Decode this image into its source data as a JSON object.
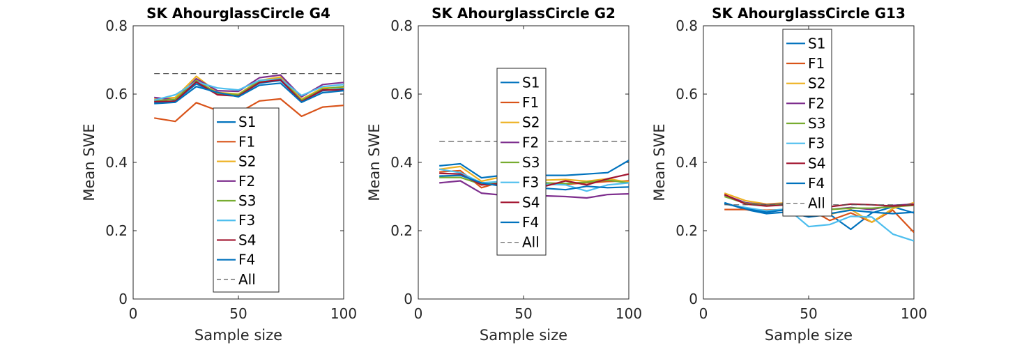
{
  "chart_data": [
    {
      "type": "line",
      "title": "SK AhourglassCircle G4",
      "xlabel": "Sample size",
      "ylabel": "Mean SWE",
      "xlim": [
        0,
        100
      ],
      "ylim": [
        0,
        0.8
      ],
      "xticks": [
        "0",
        "50",
        "100"
      ],
      "yticks": [
        "0",
        "0.2",
        "0.4",
        "0.6",
        "0.8"
      ],
      "x": [
        10,
        20,
        30,
        40,
        50,
        60,
        70,
        80,
        90,
        100
      ],
      "legend_position": "lower-center",
      "series": [
        {
          "name": "S1",
          "color": "#0072BD",
          "values": [
            0.575,
            0.58,
            0.63,
            0.6,
            0.596,
            0.632,
            0.64,
            0.58,
            0.61,
            0.616
          ]
        },
        {
          "name": "F1",
          "color": "#D95319",
          "values": [
            0.53,
            0.52,
            0.575,
            0.552,
            0.545,
            0.58,
            0.586,
            0.535,
            0.562,
            0.567
          ]
        },
        {
          "name": "S2",
          "color": "#EDB120",
          "values": [
            0.585,
            0.59,
            0.652,
            0.605,
            0.6,
            0.64,
            0.65,
            0.585,
            0.618,
            0.62
          ]
        },
        {
          "name": "F2",
          "color": "#7E2F8E",
          "values": [
            0.59,
            0.583,
            0.645,
            0.61,
            0.608,
            0.648,
            0.656,
            0.592,
            0.628,
            0.634
          ]
        },
        {
          "name": "S3",
          "color": "#77AC30",
          "values": [
            0.58,
            0.585,
            0.64,
            0.602,
            0.598,
            0.638,
            0.645,
            0.582,
            0.615,
            0.622
          ]
        },
        {
          "name": "F3",
          "color": "#4DBEEE",
          "values": [
            0.582,
            0.598,
            0.636,
            0.618,
            0.612,
            0.64,
            0.644,
            0.596,
            0.622,
            0.628
          ]
        },
        {
          "name": "S4",
          "color": "#A2142F",
          "values": [
            0.578,
            0.579,
            0.636,
            0.598,
            0.594,
            0.634,
            0.642,
            0.578,
            0.612,
            0.612
          ]
        },
        {
          "name": "F4",
          "color": "#0072BD",
          "values": [
            0.572,
            0.576,
            0.622,
            0.605,
            0.592,
            0.626,
            0.632,
            0.576,
            0.604,
            0.61
          ]
        },
        {
          "name": "All",
          "color": "#000000",
          "dashed": true,
          "values": [
            0.66,
            0.66,
            0.66,
            0.66,
            0.66,
            0.66,
            0.66,
            0.66,
            0.66,
            0.66
          ]
        }
      ]
    },
    {
      "type": "line",
      "title": "SK AhourglassCircle G2",
      "xlabel": "Sample size",
      "ylabel": "Mean SWE",
      "xlim": [
        0,
        100
      ],
      "ylim": [
        0,
        0.8
      ],
      "xticks": [
        "0",
        "50",
        "100"
      ],
      "yticks": [
        "0",
        "0.2",
        "0.4",
        "0.6",
        "0.8"
      ],
      "x": [
        10,
        20,
        30,
        40,
        50,
        60,
        70,
        80,
        90,
        100
      ],
      "legend_position": "center",
      "series": [
        {
          "name": "S1",
          "color": "#0072BD",
          "values": [
            0.39,
            0.396,
            0.355,
            0.362,
            0.36,
            0.362,
            0.362,
            0.366,
            0.37,
            0.406
          ]
        },
        {
          "name": "F1",
          "color": "#D95319",
          "values": [
            0.372,
            0.376,
            0.326,
            0.344,
            0.336,
            0.336,
            0.336,
            0.34,
            0.344,
            0.346
          ]
        },
        {
          "name": "S2",
          "color": "#EDB120",
          "values": [
            0.38,
            0.388,
            0.345,
            0.358,
            0.352,
            0.348,
            0.35,
            0.345,
            0.352,
            0.342
          ]
        },
        {
          "name": "F2",
          "color": "#7E2F8E",
          "values": [
            0.34,
            0.346,
            0.31,
            0.304,
            0.302,
            0.302,
            0.3,
            0.296,
            0.306,
            0.308
          ]
        },
        {
          "name": "S3",
          "color": "#77AC30",
          "values": [
            0.356,
            0.356,
            0.336,
            0.34,
            0.338,
            0.34,
            0.338,
            0.342,
            0.348,
            0.34
          ]
        },
        {
          "name": "F3",
          "color": "#4DBEEE",
          "values": [
            0.38,
            0.37,
            0.34,
            0.344,
            0.34,
            0.336,
            0.334,
            0.316,
            0.334,
            0.34
          ]
        },
        {
          "name": "S4",
          "color": "#A2142F",
          "values": [
            0.368,
            0.366,
            0.334,
            0.338,
            0.334,
            0.33,
            0.346,
            0.334,
            0.352,
            0.366
          ]
        },
        {
          "name": "F4",
          "color": "#0072BD",
          "values": [
            0.36,
            0.362,
            0.34,
            0.33,
            0.33,
            0.324,
            0.32,
            0.33,
            0.326,
            0.328
          ]
        },
        {
          "name": "All",
          "color": "#000000",
          "dashed": true,
          "values": [
            0.462,
            0.462,
            0.462,
            0.462,
            0.462,
            0.462,
            0.462,
            0.462,
            0.462,
            0.462
          ]
        }
      ]
    },
    {
      "type": "line",
      "title": "SK AhourglassCircle G13",
      "xlabel": "Sample size",
      "ylabel": "Mean SWE",
      "xlim": [
        0,
        100
      ],
      "ylim": [
        0,
        0.8
      ],
      "xticks": [
        "0",
        "50",
        "100"
      ],
      "yticks": [
        "0",
        "0.2",
        "0.4",
        "0.6",
        "0.8"
      ],
      "x": [
        10,
        20,
        30,
        40,
        50,
        60,
        70,
        80,
        90,
        100
      ],
      "legend_position": "upper-center",
      "series": [
        {
          "name": "S1",
          "color": "#0072BD",
          "values": [
            0.282,
            0.262,
            0.25,
            0.255,
            0.24,
            0.248,
            0.204,
            0.252,
            0.27,
            0.252
          ]
        },
        {
          "name": "F1",
          "color": "#D95319",
          "values": [
            0.262,
            0.262,
            0.26,
            0.262,
            0.265,
            0.23,
            0.252,
            0.225,
            0.26,
            0.195
          ]
        },
        {
          "name": "S2",
          "color": "#EDB120",
          "values": [
            0.31,
            0.288,
            0.278,
            0.282,
            0.275,
            0.248,
            0.262,
            0.225,
            0.265,
            0.282
          ]
        },
        {
          "name": "F2",
          "color": "#7E2F8E",
          "values": [
            0.305,
            0.282,
            0.276,
            0.28,
            0.276,
            0.262,
            0.268,
            0.262,
            0.274,
            0.278
          ]
        },
        {
          "name": "S3",
          "color": "#77AC30",
          "values": [
            0.3,
            0.28,
            0.274,
            0.278,
            0.272,
            0.262,
            0.266,
            0.266,
            0.27,
            0.274
          ]
        },
        {
          "name": "F3",
          "color": "#4DBEEE",
          "values": [
            0.278,
            0.268,
            0.258,
            0.264,
            0.212,
            0.218,
            0.242,
            0.24,
            0.19,
            0.17
          ]
        },
        {
          "name": "S4",
          "color": "#A2142F",
          "values": [
            0.306,
            0.278,
            0.272,
            0.276,
            0.27,
            0.27,
            0.278,
            0.276,
            0.272,
            0.276
          ]
        },
        {
          "name": "F4",
          "color": "#0072BD",
          "values": [
            0.28,
            0.264,
            0.254,
            0.262,
            0.252,
            0.25,
            0.26,
            0.254,
            0.25,
            0.254
          ]
        },
        {
          "name": "All",
          "color": "#000000",
          "dashed": true,
          "values": [
            0.276,
            0.276,
            0.276,
            0.276,
            0.276,
            0.276,
            0.276,
            0.276,
            0.276,
            0.276
          ]
        }
      ]
    }
  ]
}
